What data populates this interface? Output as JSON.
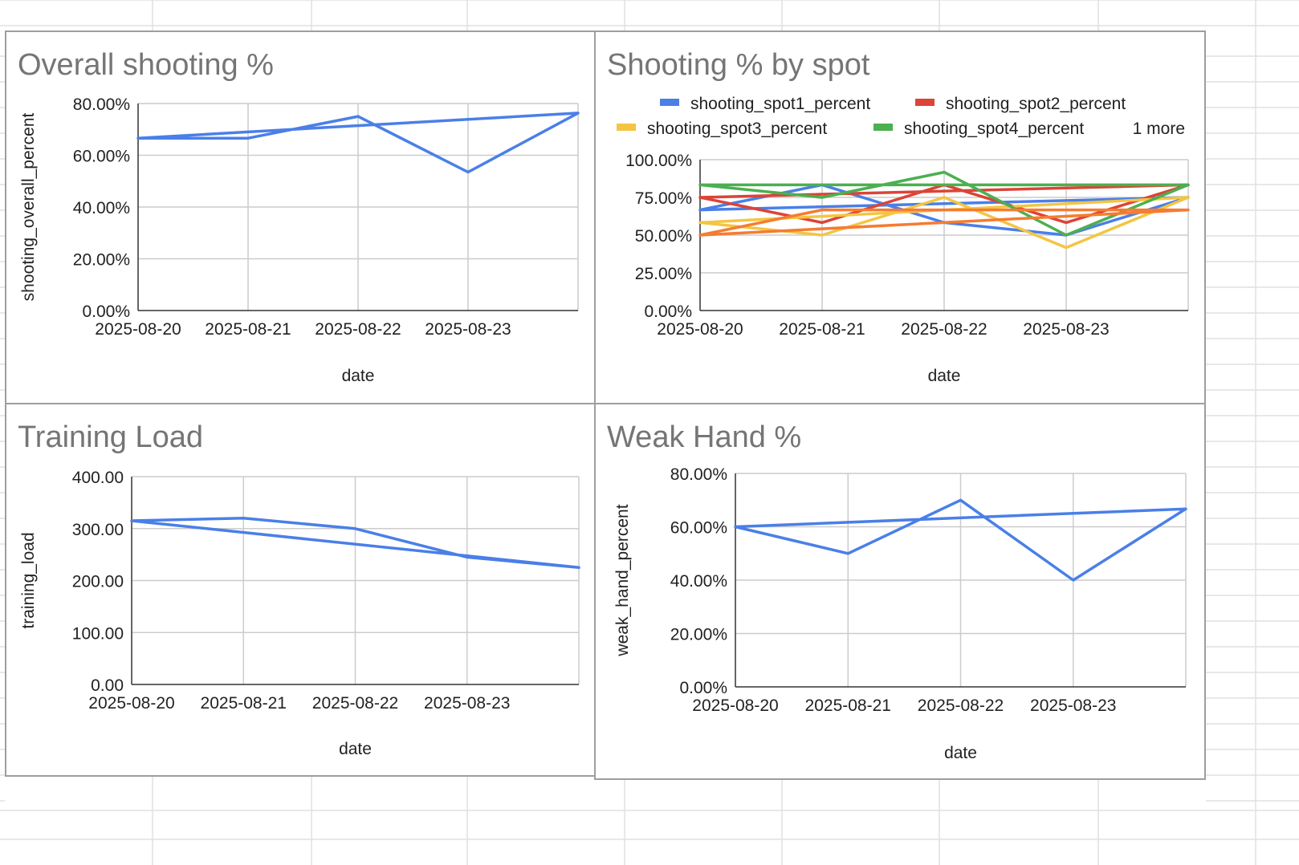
{
  "colors": {
    "panel_border": "#9e9e9e",
    "grid": "#cccccc",
    "axis": "#333333",
    "sheet_grid": "#e0e0e0"
  },
  "chart_data": [
    {
      "id": "overall",
      "type": "line",
      "title": "Overall shooting %",
      "xlabel": "date",
      "ylabel": "shooting_overall_percent",
      "categories": [
        "2025-08-20",
        "2025-08-21",
        "2025-08-22",
        "2025-08-23"
      ],
      "ylim": [
        0,
        0.8
      ],
      "yticks": [
        "0.00%",
        "20.00%",
        "40.00%",
        "60.00%",
        "80.00%"
      ],
      "grid": true,
      "legend": "none",
      "series": [
        {
          "color": "#4a7fe8",
          "points": [
            [
              0,
              0.666
            ],
            [
              1,
              0.666
            ],
            [
              2,
              0.75
            ],
            [
              3,
              0.535
            ],
            [
              4,
              0.763
            ],
            [
              0,
              0.666
            ]
          ]
        }
      ]
    },
    {
      "id": "by_spot",
      "type": "line",
      "title": "Shooting % by spot",
      "xlabel": "date",
      "ylabel": "",
      "categories": [
        "2025-08-20",
        "2025-08-21",
        "2025-08-22",
        "2025-08-23"
      ],
      "ylim": [
        0,
        1
      ],
      "yticks": [
        "0.00%",
        "25.00%",
        "50.00%",
        "75.00%",
        "100.00%"
      ],
      "grid": true,
      "legend": "top",
      "legend_more": "1 more",
      "series": [
        {
          "name": "shooting_spot1_percent",
          "color": "#4a7fe8",
          "points": [
            [
              0,
              0.667
            ],
            [
              1,
              0.833
            ],
            [
              2,
              0.583
            ],
            [
              3,
              0.5
            ],
            [
              4,
              0.75
            ],
            [
              0,
              0.667
            ]
          ]
        },
        {
          "name": "shooting_spot2_percent",
          "color": "#db4437",
          "points": [
            [
              0,
              0.75
            ],
            [
              1,
              0.583
            ],
            [
              2,
              0.833
            ],
            [
              3,
              0.583
            ],
            [
              4,
              0.833
            ],
            [
              0,
              0.75
            ]
          ]
        },
        {
          "name": "shooting_spot3_percent",
          "color": "#f4c542",
          "points": [
            [
              0,
              0.583
            ],
            [
              1,
              0.5
            ],
            [
              2,
              0.75
            ],
            [
              3,
              0.417
            ],
            [
              4,
              0.75
            ],
            [
              0,
              0.583
            ]
          ]
        },
        {
          "name": "shooting_spot4_percent",
          "color": "#4caf50",
          "points": [
            [
              0,
              0.833
            ],
            [
              1,
              0.75
            ],
            [
              2,
              0.917
            ],
            [
              3,
              0.5
            ],
            [
              4,
              0.833
            ],
            [
              0,
              0.833
            ]
          ]
        },
        {
          "color": "#f57c30",
          "points": [
            [
              0,
              0.5
            ],
            [
              1,
              0.667
            ],
            [
              2,
              0.667
            ],
            [
              3,
              0.667
            ],
            [
              4,
              0.667
            ],
            [
              0,
              0.5
            ]
          ]
        }
      ]
    },
    {
      "id": "load",
      "type": "line",
      "title": "Training Load",
      "xlabel": "date",
      "ylabel": "training_load",
      "categories": [
        "2025-08-20",
        "2025-08-21",
        "2025-08-22",
        "2025-08-23"
      ],
      "ylim": [
        0,
        400
      ],
      "yticks": [
        "0.00",
        "100.00",
        "200.00",
        "300.00",
        "400.00"
      ],
      "grid": true,
      "legend": "none",
      "series": [
        {
          "color": "#4a7fe8",
          "points": [
            [
              0,
              315
            ],
            [
              1,
              320
            ],
            [
              2,
              300
            ],
            [
              3,
              245
            ],
            [
              4,
              225
            ],
            [
              0,
              315
            ]
          ]
        }
      ]
    },
    {
      "id": "weak",
      "type": "line",
      "title": "Weak Hand %",
      "xlabel": "date",
      "ylabel": "weak_hand_percent",
      "categories": [
        "2025-08-20",
        "2025-08-21",
        "2025-08-22",
        "2025-08-23"
      ],
      "ylim": [
        0,
        0.8
      ],
      "yticks": [
        "0.00%",
        "20.00%",
        "40.00%",
        "60.00%",
        "80.00%"
      ],
      "grid": true,
      "legend": "none",
      "series": [
        {
          "color": "#4a7fe8",
          "points": [
            [
              0,
              0.6
            ],
            [
              1,
              0.5
            ],
            [
              2,
              0.7
            ],
            [
              3,
              0.4
            ],
            [
              4,
              0.667
            ],
            [
              0,
              0.6
            ]
          ]
        }
      ]
    }
  ]
}
